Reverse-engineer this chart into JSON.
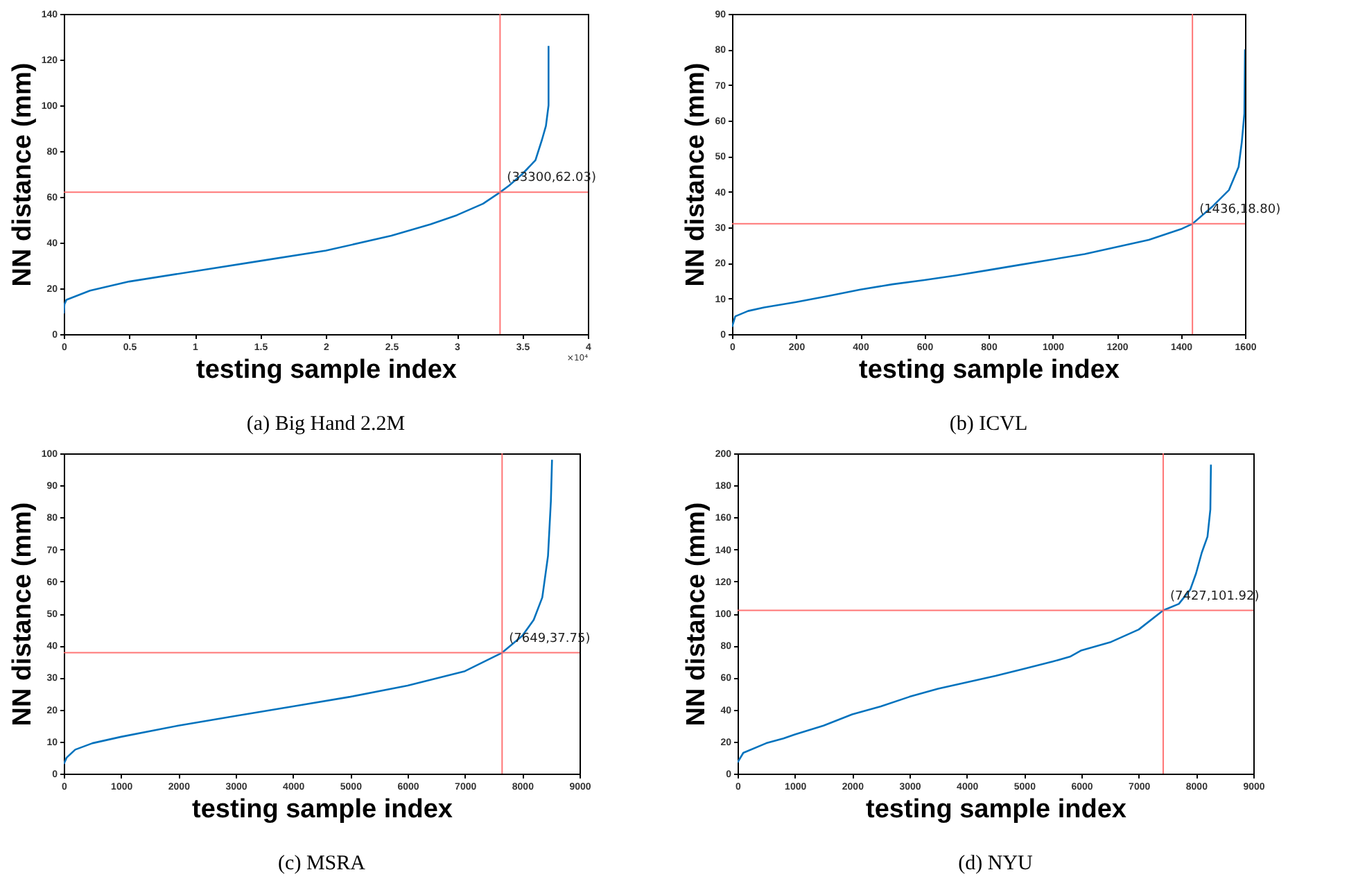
{
  "chart_data": [
    {
      "type": "line",
      "title": "(a)  Big Hand 2.2M",
      "xlabel": "testing sample index",
      "ylabel": "NN distance (mm)",
      "xlim": [
        0,
        4
      ],
      "ylim": [
        0,
        140
      ],
      "xticks": [
        0,
        0.5,
        1,
        1.5,
        2,
        2.5,
        3,
        3.5,
        4
      ],
      "yticks": [
        0,
        20,
        40,
        60,
        80,
        100,
        120,
        140
      ],
      "grid": false,
      "series": [
        {
          "color": "#0072bd",
          "x": [
            0,
            0.005,
            0.02,
            0.2,
            0.5,
            1,
            1.5,
            2,
            2.5,
            2.8,
            3,
            3.2,
            3.33,
            3.4,
            3.5,
            3.6,
            3.65,
            3.68,
            3.7,
            3.7
          ],
          "values": [
            9,
            13,
            15,
            19,
            23,
            27.5,
            32,
            36.5,
            43,
            48,
            52,
            57,
            62,
            65,
            70,
            76,
            85,
            91,
            100,
            126
          ]
        }
      ],
      "ref_lines": [
        {
          "axis": "x",
          "value": 3.33,
          "color": "#ff6666"
        },
        {
          "axis": "y",
          "value": 62.03,
          "color": "#ff6666"
        }
      ],
      "annotations": [
        {
          "text": "(33300,62.03)",
          "x": 3.33,
          "y": 62.03
        },
        "×10⁴"
      ]
    },
    {
      "type": "line",
      "title": "(b)  ICVL",
      "xlabel": "testing sample index",
      "ylabel": "NN distance (mm)",
      "xlim": [
        0,
        1600
      ],
      "ylim": [
        0,
        90
      ],
      "xticks": [
        0,
        200,
        400,
        600,
        800,
        1000,
        1200,
        1400,
        1600
      ],
      "yticks": [
        0,
        10,
        20,
        30,
        40,
        50,
        60,
        70,
        80,
        90
      ],
      "grid": false,
      "series": [
        {
          "color": "#0072bd",
          "x": [
            0,
            10,
            50,
            100,
            200,
            300,
            400,
            500,
            600,
            700,
            800,
            900,
            1000,
            1100,
            1200,
            1300,
            1400,
            1436,
            1500,
            1550,
            1580,
            1590,
            1598,
            1600
          ],
          "values": [
            2,
            5,
            6.5,
            7.5,
            9,
            10.7,
            12.5,
            14,
            15.2,
            16.5,
            18,
            19.5,
            21,
            22.5,
            24.5,
            26.5,
            29.5,
            31,
            36,
            40.5,
            47,
            54,
            62,
            80
          ]
        }
      ],
      "ref_lines": [
        {
          "axis": "x",
          "value": 1436,
          "color": "#ff6666"
        },
        {
          "axis": "y",
          "value": 31,
          "color": "#ff6666"
        }
      ],
      "annotations": [
        {
          "text": "(1436,18.80)",
          "x": 1436,
          "y": 31
        }
      ]
    },
    {
      "type": "line",
      "title": "(c)  MSRA",
      "xlabel": "testing sample index",
      "ylabel": "NN distance (mm)",
      "xlim": [
        0,
        9000
      ],
      "ylim": [
        0,
        100
      ],
      "xticks": [
        0,
        1000,
        2000,
        3000,
        4000,
        5000,
        6000,
        7000,
        8000,
        9000
      ],
      "yticks": [
        0,
        10,
        20,
        30,
        40,
        50,
        60,
        70,
        80,
        90,
        100
      ],
      "grid": false,
      "series": [
        {
          "color": "#0072bd",
          "x": [
            0,
            50,
            200,
            500,
            1000,
            2000,
            3000,
            4000,
            5000,
            6000,
            7000,
            7649,
            8000,
            8200,
            8350,
            8450,
            8500,
            8520
          ],
          "values": [
            3,
            5,
            7.5,
            9.5,
            11.5,
            15,
            18,
            21,
            24,
            27.5,
            32,
            37.75,
            43,
            48,
            55,
            68,
            85,
            98
          ]
        }
      ],
      "ref_lines": [
        {
          "axis": "x",
          "value": 7649,
          "color": "#ff6666"
        },
        {
          "axis": "y",
          "value": 37.75,
          "color": "#ff6666"
        }
      ],
      "annotations": [
        {
          "text": "(7649,37.75)",
          "x": 7649,
          "y": 37.75
        }
      ]
    },
    {
      "type": "line",
      "title": "(d)  NYU",
      "xlabel": "testing sample index",
      "ylabel": "NN distance (mm)",
      "xlim": [
        0,
        9000
      ],
      "ylim": [
        0,
        200
      ],
      "xticks": [
        0,
        1000,
        2000,
        3000,
        4000,
        5000,
        6000,
        7000,
        8000,
        9000
      ],
      "yticks": [
        0,
        20,
        40,
        60,
        80,
        100,
        120,
        140,
        160,
        180,
        200
      ],
      "grid": false,
      "series": [
        {
          "color": "#0072bd",
          "x": [
            0,
            100,
            500,
            800,
            1000,
            1500,
            2000,
            2500,
            3000,
            3500,
            4000,
            4500,
            5000,
            5500,
            5800,
            6000,
            6500,
            7000,
            7427,
            7700,
            7900,
            8000,
            8100,
            8200,
            8250,
            8260
          ],
          "values": [
            7,
            13,
            19,
            22,
            24.5,
            30,
            37,
            42,
            48,
            53,
            57,
            61,
            65.5,
            70,
            73,
            77,
            82,
            90,
            101.92,
            106,
            115,
            125,
            138,
            148,
            165,
            193
          ]
        }
      ],
      "ref_lines": [
        {
          "axis": "x",
          "value": 7427,
          "color": "#ff6666"
        },
        {
          "axis": "y",
          "value": 101.92,
          "color": "#ff6666"
        }
      ],
      "annotations": [
        {
          "text": "(7427,101.92)",
          "x": 7427,
          "y": 101.92
        }
      ]
    }
  ]
}
